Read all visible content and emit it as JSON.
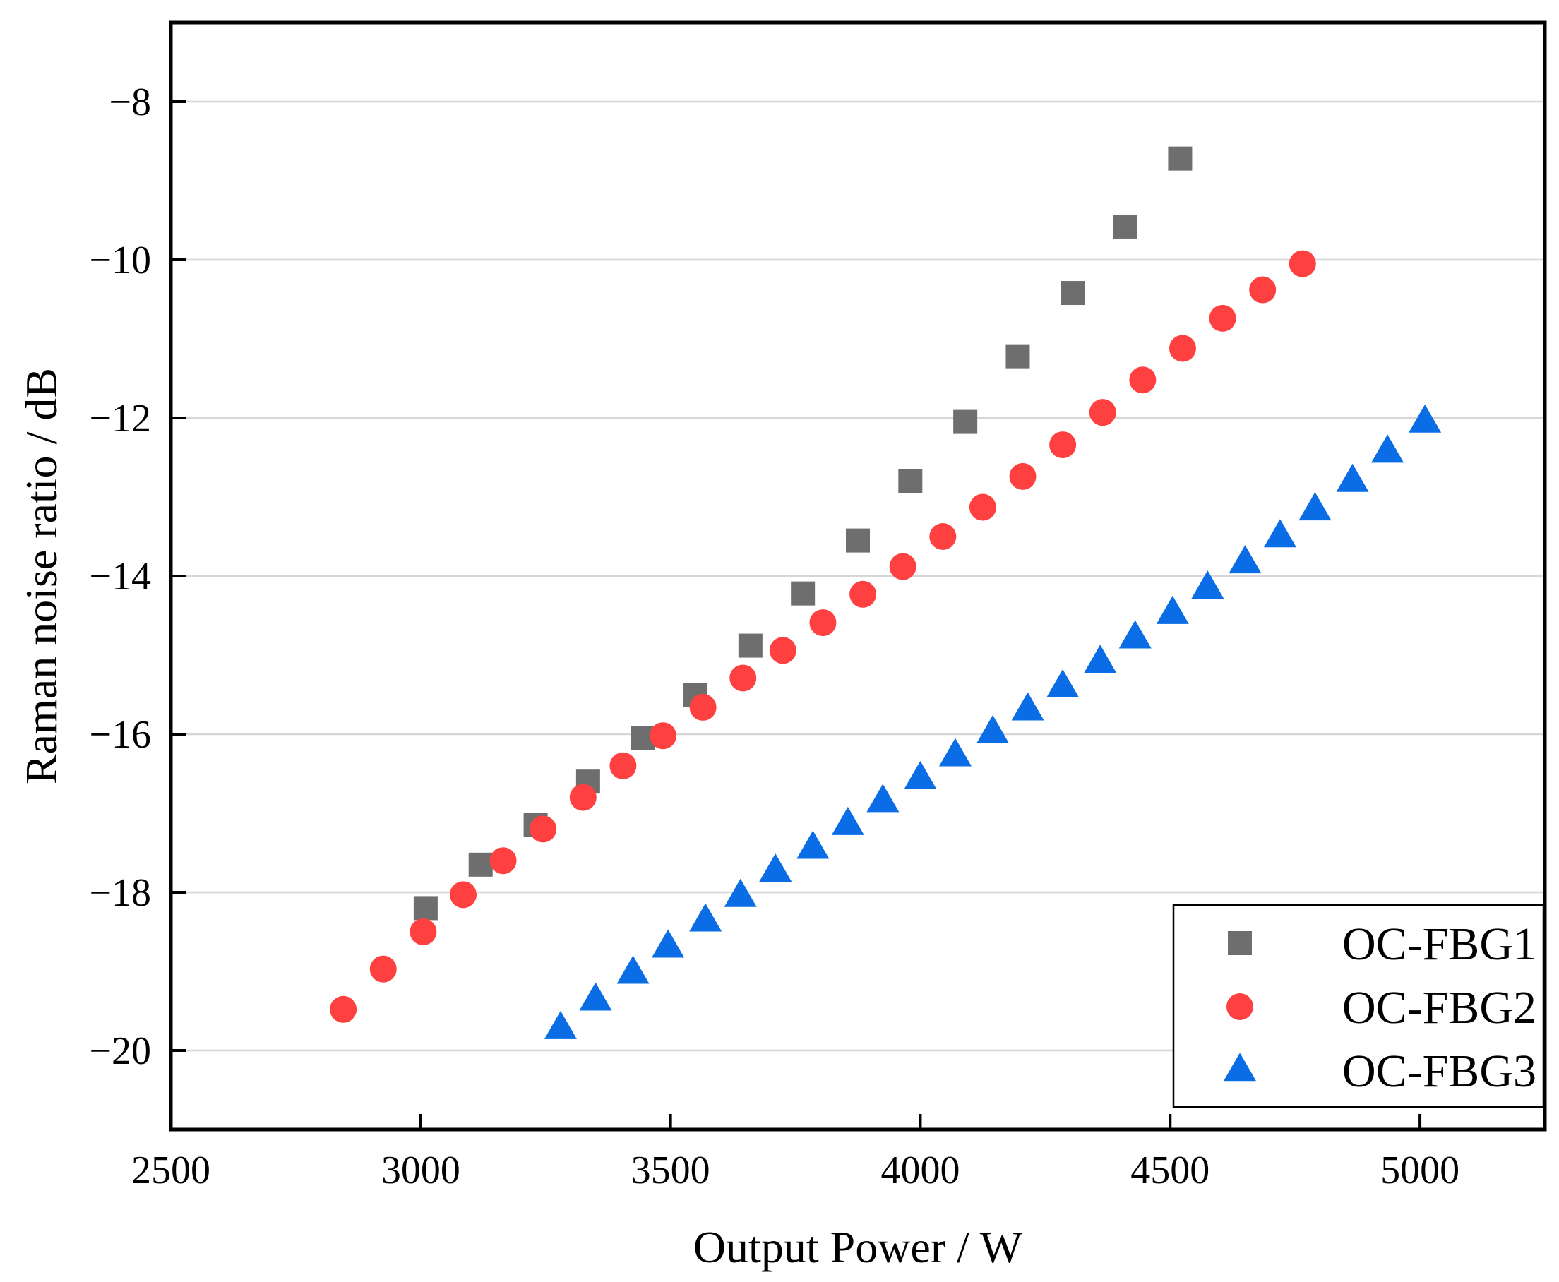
{
  "chart_data": {
    "type": "scatter",
    "title": "",
    "xlabel": "Output Power / W",
    "ylabel": "Raman noise ratio / dB",
    "xlim": [
      2500,
      5250
    ],
    "ylim": [
      -21,
      -7
    ],
    "xticks": [
      2500,
      3000,
      3500,
      4000,
      4500,
      5000
    ],
    "xtick_labels": [
      "2500",
      "3000",
      "3500",
      "4000",
      "4500",
      "5000"
    ],
    "yticks": [
      -20,
      -18,
      -16,
      -14,
      -12,
      -10,
      -8
    ],
    "ytick_labels": [
      "−20",
      "−18",
      "−16",
      "−14",
      "−12",
      "−10",
      "−8"
    ],
    "grid": "horizontal",
    "legend_position": "bottom-right",
    "series": [
      {
        "name": "OC-FBG1",
        "marker": "square",
        "color": "#6e6e6e",
        "points": [
          [
            3010,
            -18.2
          ],
          [
            3120,
            -17.65
          ],
          [
            3230,
            -17.15
          ],
          [
            3335,
            -16.6
          ],
          [
            3445,
            -16.05
          ],
          [
            3550,
            -15.5
          ],
          [
            3660,
            -14.88
          ],
          [
            3765,
            -14.22
          ],
          [
            3875,
            -13.55
          ],
          [
            3980,
            -12.8
          ],
          [
            4090,
            -12.05
          ],
          [
            4195,
            -11.22
          ],
          [
            4305,
            -10.42
          ],
          [
            4410,
            -9.58
          ],
          [
            4520,
            -8.72
          ]
        ]
      },
      {
        "name": "OC-FBG2",
        "marker": "circle",
        "color": "#ff4040",
        "points": [
          [
            2845,
            -19.48
          ],
          [
            2925,
            -18.97
          ],
          [
            3005,
            -18.5
          ],
          [
            3085,
            -18.03
          ],
          [
            3165,
            -17.6
          ],
          [
            3245,
            -17.2
          ],
          [
            3325,
            -16.8
          ],
          [
            3405,
            -16.4
          ],
          [
            3485,
            -16.02
          ],
          [
            3565,
            -15.66
          ],
          [
            3645,
            -15.29
          ],
          [
            3725,
            -14.94
          ],
          [
            3805,
            -14.59
          ],
          [
            3885,
            -14.23
          ],
          [
            3965,
            -13.88
          ],
          [
            4045,
            -13.5
          ],
          [
            4125,
            -13.13
          ],
          [
            4205,
            -12.74
          ],
          [
            4285,
            -12.34
          ],
          [
            4365,
            -11.93
          ],
          [
            4445,
            -11.52
          ],
          [
            4525,
            -11.12
          ],
          [
            4605,
            -10.74
          ],
          [
            4685,
            -10.38
          ],
          [
            4765,
            -10.05
          ]
        ]
      },
      {
        "name": "OC-FBG3",
        "marker": "triangle",
        "color": "#0a6de6",
        "points": [
          [
            3280,
            -19.72
          ],
          [
            3350,
            -19.36
          ],
          [
            3425,
            -19.02
          ],
          [
            3495,
            -18.69
          ],
          [
            3570,
            -18.36
          ],
          [
            3640,
            -18.05
          ],
          [
            3710,
            -17.73
          ],
          [
            3785,
            -17.44
          ],
          [
            3855,
            -17.14
          ],
          [
            3925,
            -16.85
          ],
          [
            4000,
            -16.56
          ],
          [
            4070,
            -16.27
          ],
          [
            4145,
            -15.98
          ],
          [
            4215,
            -15.69
          ],
          [
            4285,
            -15.4
          ],
          [
            4360,
            -15.09
          ],
          [
            4430,
            -14.78
          ],
          [
            4505,
            -14.47
          ],
          [
            4575,
            -14.15
          ],
          [
            4650,
            -13.83
          ],
          [
            4720,
            -13.5
          ],
          [
            4790,
            -13.16
          ],
          [
            4865,
            -12.8
          ],
          [
            4935,
            -12.43
          ],
          [
            5010,
            -12.05
          ]
        ]
      }
    ]
  }
}
